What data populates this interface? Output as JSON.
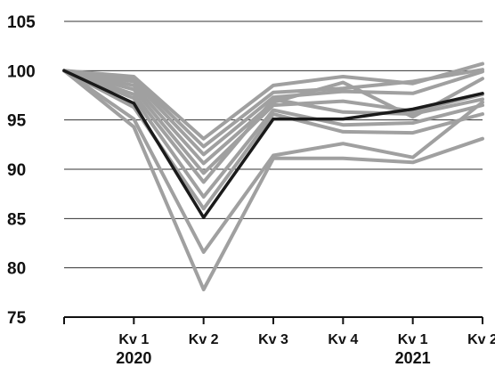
{
  "chart_data": {
    "type": "line",
    "categories": [
      "",
      "Kv 1",
      "Kv 2",
      "Kv 3",
      "Kv 4",
      "Kv 1",
      "Kv 2"
    ],
    "year_labels": [
      {
        "category_index": 1,
        "text": "2020"
      },
      {
        "category_index": 5,
        "text": "2021"
      }
    ],
    "ylim": [
      75,
      105
    ],
    "yticks": [
      75,
      80,
      85,
      90,
      95,
      100,
      105
    ],
    "grid": true,
    "colors": {
      "highlight": "#1a1a1a",
      "other": "#a0a0a0",
      "grid": "#333333"
    },
    "series": [
      {
        "highlight": true,
        "values": [
          100,
          96.7,
          85.1,
          95.1,
          95.1,
          96.1,
          97.7
        ]
      },
      {
        "highlight": false,
        "values": [
          100,
          99.4,
          93.1,
          98.5,
          99.4,
          98.7,
          100.7
        ]
      },
      {
        "highlight": false,
        "values": [
          100,
          99.2,
          92.3,
          97.8,
          98.2,
          98.9,
          100.1
        ]
      },
      {
        "highlight": false,
        "values": [
          100,
          98.9,
          91.5,
          97.3,
          97.9,
          97.7,
          99.9
        ]
      },
      {
        "highlight": false,
        "values": [
          100,
          98.5,
          90.6,
          96.8,
          98.8,
          95.3,
          99.2
        ]
      },
      {
        "highlight": false,
        "values": [
          100,
          98.1,
          89.6,
          96.5,
          96.9,
          95.9,
          97.6
        ]
      },
      {
        "highlight": false,
        "values": [
          100,
          97.6,
          88.7,
          97.1,
          95.8,
          95.6,
          97.1
        ]
      },
      {
        "highlight": false,
        "values": [
          100,
          97.2,
          87.2,
          96.0,
          94.5,
          94.7,
          96.5
        ]
      },
      {
        "highlight": false,
        "values": [
          100,
          96.3,
          86.0,
          95.6,
          93.8,
          93.7,
          95.6
        ]
      },
      {
        "highlight": false,
        "values": [
          100,
          95.1,
          81.6,
          91.4,
          92.6,
          91.2,
          96.8
        ]
      },
      {
        "highlight": false,
        "values": [
          100,
          94.3,
          77.8,
          91.1,
          91.1,
          90.7,
          93.1
        ]
      }
    ]
  }
}
